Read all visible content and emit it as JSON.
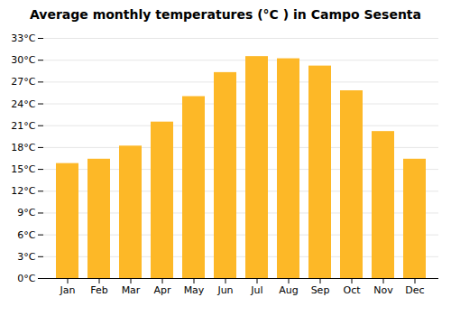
{
  "chart_data": {
    "type": "bar",
    "title": "Average monthly temperatures (°C ) in Campo Sesenta",
    "categories": [
      "Jan",
      "Feb",
      "Mar",
      "Apr",
      "May",
      "Jun",
      "Jul",
      "Aug",
      "Sep",
      "Oct",
      "Nov",
      "Dec"
    ],
    "values": [
      15.8,
      16.4,
      18.2,
      21.5,
      25.0,
      28.3,
      30.5,
      30.2,
      29.2,
      25.8,
      20.2,
      16.4
    ],
    "color": "#FDB827",
    "ylim": [
      0,
      33
    ],
    "yticks": [
      {
        "value": 0,
        "label": "0°C"
      },
      {
        "value": 3,
        "label": "3°C"
      },
      {
        "value": 6,
        "label": "6°C"
      },
      {
        "value": 9,
        "label": "9°C"
      },
      {
        "value": 12,
        "label": "12°C"
      },
      {
        "value": 15,
        "label": "15°C"
      },
      {
        "value": 18,
        "label": "18°C"
      },
      {
        "value": 21,
        "label": "21°C"
      },
      {
        "value": 24,
        "label": "24°C"
      },
      {
        "value": 27,
        "label": "27°C"
      },
      {
        "value": 30,
        "label": "30°C"
      },
      {
        "value": 33,
        "label": "33°C"
      }
    ],
    "grid": true
  }
}
